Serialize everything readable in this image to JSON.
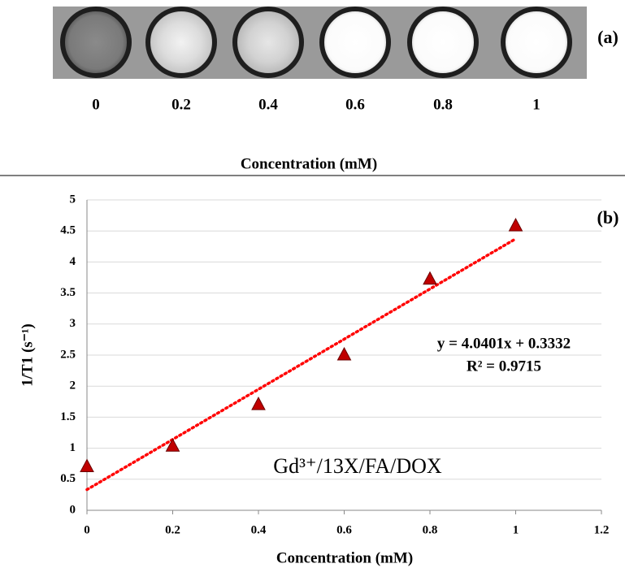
{
  "panel_a": {
    "label": "(a)",
    "concentrations": [
      0,
      0.2,
      0.4,
      0.6,
      0.8,
      1
    ],
    "axis_label": "Concentration (mM)"
  },
  "chart_data": {
    "type": "scatter",
    "panel_label": "(b)",
    "xlabel": "Concentration (mM)",
    "ylabel": "1/T1 (s⁻¹)",
    "x": [
      0,
      0.2,
      0.4,
      0.6,
      0.8,
      1
    ],
    "series": [
      {
        "name": "Gd³⁺/13X/FA/DOX",
        "color": "#c00000",
        "values": [
          0.7,
          1.03,
          1.7,
          2.5,
          3.72,
          4.58
        ]
      }
    ],
    "trendline": {
      "slope": 4.0401,
      "intercept": 0.3332,
      "color": "#ff0000",
      "equation": "y = 4.0401x + 0.3332",
      "r_squared": "R² = 0.9715"
    },
    "xlim": [
      0,
      1.2
    ],
    "xticks": [
      0,
      0.2,
      0.4,
      0.6,
      0.8,
      1,
      1.2
    ],
    "ylim": [
      0,
      5
    ],
    "yticks": [
      0,
      0.5,
      1,
      1.5,
      2,
      2.5,
      3,
      3.5,
      4,
      4.5,
      5
    ],
    "grid": true
  }
}
